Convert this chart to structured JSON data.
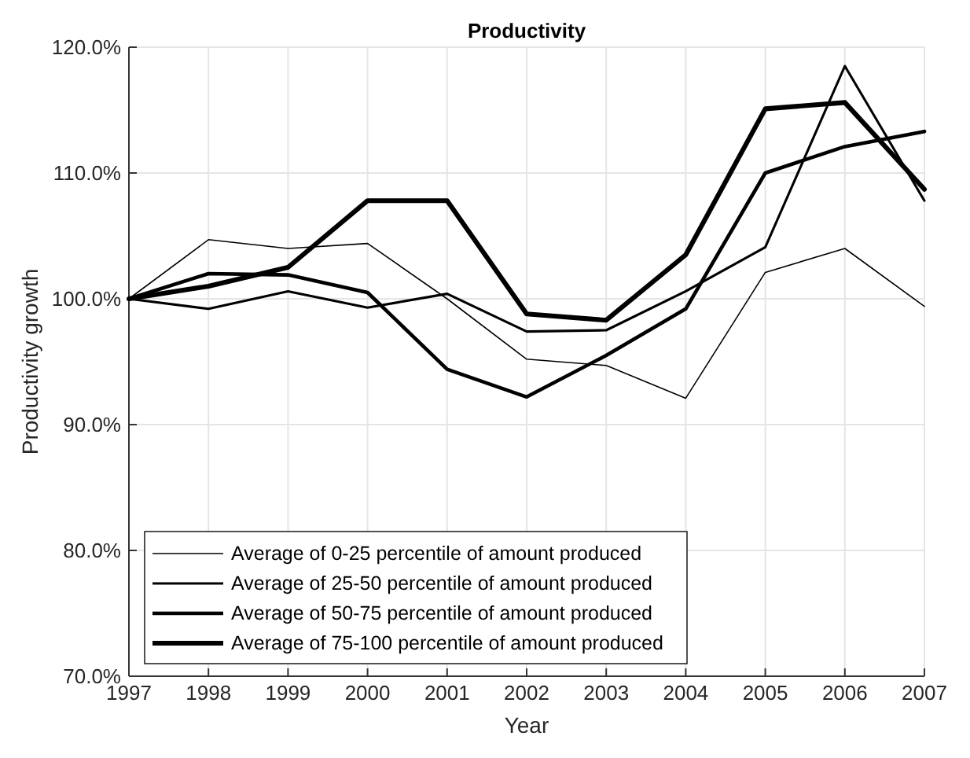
{
  "chart_data": {
    "type": "line",
    "title": "Productivity",
    "xlabel": "Year",
    "ylabel": "Productivity growth",
    "x": [
      1997,
      1998,
      1999,
      2000,
      2001,
      2002,
      2003,
      2004,
      2005,
      2006,
      2007
    ],
    "series": [
      {
        "name": "Average of 0-25 percentile of amount produced",
        "color": "#000000",
        "values": [
          100,
          104.7,
          104.0,
          104.4,
          100.0,
          95.2,
          94.7,
          92.1,
          102.1,
          104.0,
          99.4
        ]
      },
      {
        "name": "Average of 25-50 percentile of amount produced",
        "color": "#000000",
        "values": [
          100,
          99.2,
          100.6,
          99.3,
          100.4,
          97.4,
          97.5,
          100.6,
          104.1,
          118.5,
          107.8
        ]
      },
      {
        "name": "Average of 50-75 percentile of amount produced",
        "color": "#000000",
        "values": [
          100,
          102.0,
          101.9,
          100.5,
          94.4,
          92.2,
          95.5,
          99.2,
          110.0,
          112.1,
          113.3
        ]
      },
      {
        "name": "Average of 75-100 percentile of amount produced",
        "color": "#000000",
        "values": [
          100,
          101.0,
          102.5,
          107.8,
          107.8,
          98.8,
          98.3,
          103.5,
          115.1,
          115.6,
          108.7
        ]
      }
    ],
    "xlim": [
      1997,
      2007
    ],
    "xticks": [
      1997,
      1998,
      1999,
      2000,
      2001,
      2002,
      2003,
      2004,
      2005,
      2006,
      2007
    ],
    "ylim": [
      70,
      120
    ],
    "yticks": [
      {
        "value": 70,
        "label": "70.0%"
      },
      {
        "value": 80,
        "label": "80.0%"
      },
      {
        "value": 90,
        "label": "90.0%"
      },
      {
        "value": 100,
        "label": "100.0%"
      },
      {
        "value": 110,
        "label": "110.0%"
      },
      {
        "value": 120,
        "label": "120.0%"
      }
    ],
    "grid": true,
    "legend": "bottom left",
    "line_style": "solid",
    "marker": "none"
  }
}
